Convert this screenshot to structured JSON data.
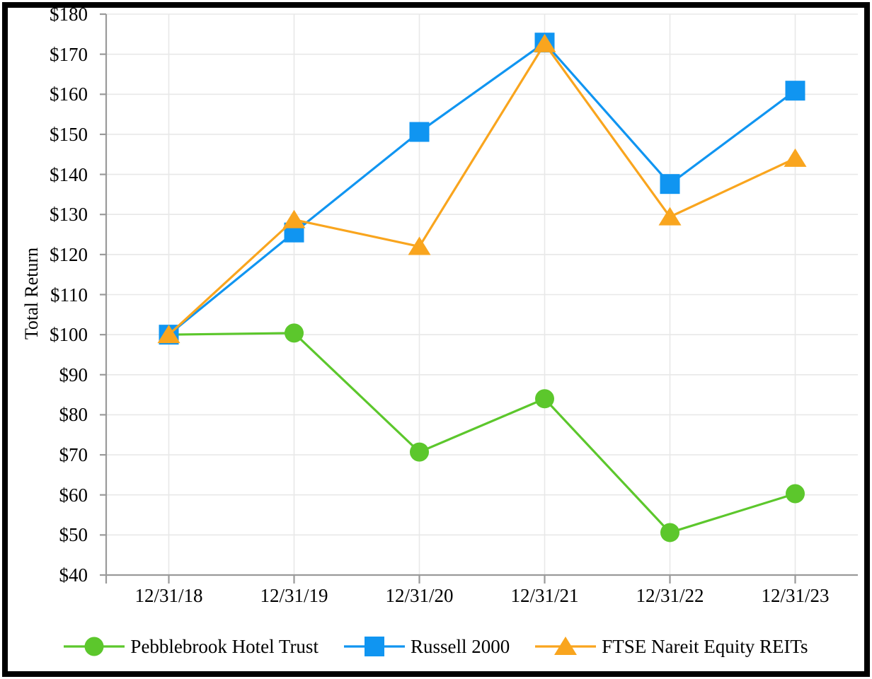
{
  "chart_data": {
    "type": "line",
    "title": "",
    "xlabel": "",
    "ylabel": "Total Return",
    "categories": [
      "12/31/18",
      "12/31/19",
      "12/31/20",
      "12/31/21",
      "12/31/22",
      "12/31/23"
    ],
    "series": [
      {
        "name": "Pebblebrook Hotel Trust",
        "marker": "circle",
        "color": "#5CC72C",
        "values": [
          100.0,
          100.4,
          70.7,
          84.0,
          50.6,
          60.3
        ]
      },
      {
        "name": "Russell 2000",
        "marker": "square",
        "color": "#1095F1",
        "values": [
          100.0,
          125.5,
          150.6,
          172.9,
          137.6,
          160.9
        ]
      },
      {
        "name": "FTSE Nareit Equity REITs",
        "marker": "triangle",
        "color": "#F9A51E",
        "values": [
          100.0,
          128.7,
          122.0,
          172.6,
          129.4,
          144.0
        ]
      }
    ],
    "y_axis": {
      "min": 40,
      "max": 180,
      "step": 10,
      "tick_labels": [
        "$40",
        "$50",
        "$60",
        "$70",
        "$80",
        "$90",
        "$100",
        "$110",
        "$120",
        "$130",
        "$140",
        "$150",
        "$160",
        "$170",
        "$180"
      ]
    },
    "grid": true,
    "legend_position": "bottom",
    "colors": {
      "gridline": "#E8E8E8",
      "axis": "#9A9A9A",
      "text": "#000000",
      "frame": "#000000",
      "background": "#FFFFFF"
    }
  }
}
